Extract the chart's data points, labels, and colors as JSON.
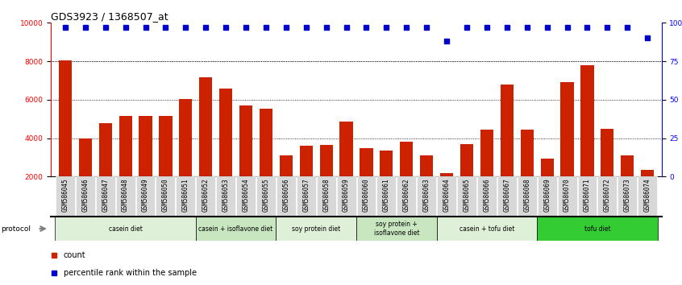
{
  "title": "GDS3923 / 1368507_at",
  "samples": [
    "GSM586045",
    "GSM586046",
    "GSM586047",
    "GSM586048",
    "GSM586049",
    "GSM586050",
    "GSM586051",
    "GSM586052",
    "GSM586053",
    "GSM586054",
    "GSM586055",
    "GSM586056",
    "GSM586057",
    "GSM586058",
    "GSM586059",
    "GSM586060",
    "GSM586061",
    "GSM586062",
    "GSM586063",
    "GSM586064",
    "GSM586065",
    "GSM586066",
    "GSM586067",
    "GSM586068",
    "GSM586069",
    "GSM586070",
    "GSM586071",
    "GSM586072",
    "GSM586073",
    "GSM586074"
  ],
  "counts": [
    8050,
    4000,
    4800,
    5150,
    5150,
    5150,
    6020,
    7150,
    6600,
    5700,
    5550,
    3100,
    3600,
    3650,
    4850,
    3500,
    3350,
    3800,
    3100,
    2200,
    3700,
    4450,
    6800,
    4450,
    2950,
    6900,
    7800,
    4500,
    3100,
    2350
  ],
  "percentile_ranks": [
    97,
    97,
    97,
    97,
    97,
    97,
    97,
    97,
    97,
    97,
    97,
    97,
    97,
    97,
    97,
    97,
    97,
    97,
    97,
    88,
    97,
    97,
    97,
    97,
    97,
    97,
    97,
    97,
    97,
    90
  ],
  "protocols": [
    {
      "label": "casein diet",
      "start": 0,
      "end": 6,
      "color": "#dff0d8"
    },
    {
      "label": "casein + isoflavone diet",
      "start": 7,
      "end": 10,
      "color": "#c8e6c0"
    },
    {
      "label": "soy protein diet",
      "start": 11,
      "end": 14,
      "color": "#dff0d8"
    },
    {
      "label": "soy protein +\nisoflavone diet",
      "start": 15,
      "end": 18,
      "color": "#c8e6c0"
    },
    {
      "label": "casein + tofu diet",
      "start": 19,
      "end": 23,
      "color": "#dff0d8"
    },
    {
      "label": "tofu diet",
      "start": 24,
      "end": 29,
      "color": "#33cc33"
    }
  ],
  "bar_color": "#cc2200",
  "dot_color": "#0000cc",
  "ylim_left": [
    2000,
    10000
  ],
  "ylim_right": [
    0,
    100
  ],
  "yticks_left": [
    2000,
    4000,
    6000,
    8000,
    10000
  ],
  "yticks_right": [
    0,
    25,
    50,
    75,
    100
  ],
  "grid_values": [
    4000,
    6000,
    8000
  ],
  "background_color": "#ffffff",
  "title_fontsize": 9,
  "tick_fontsize": 6.5,
  "legend_count_color": "#cc2200",
  "legend_pct_color": "#0000cc",
  "figsize": [
    8.46,
    3.54
  ],
  "dpi": 100
}
